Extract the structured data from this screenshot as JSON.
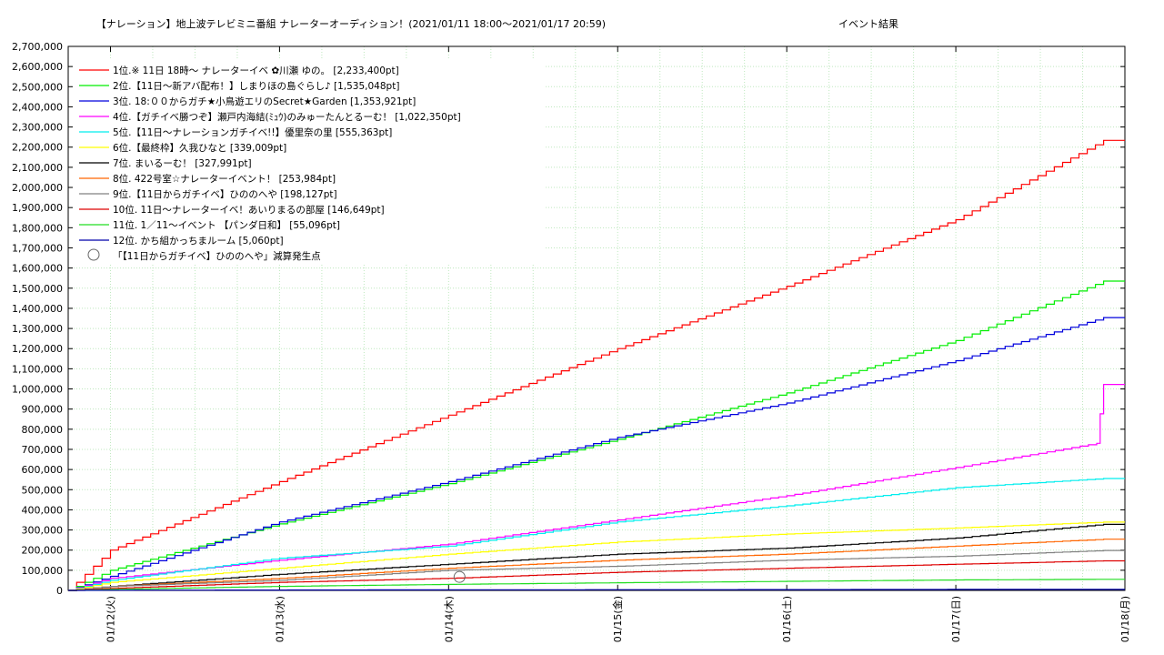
{
  "chart_data": {
    "type": "line",
    "title": "【ナレーション】地上波テレビミニ番組 ナレーターオーディション！(2021/01/11 18:00〜2021/01/17 20:59)",
    "subtitle": "イベント結果",
    "xlabel": "",
    "ylabel": "",
    "x_range": [
      "2021-01-11 18:00",
      "2021-01-18 00:00"
    ],
    "ylim": [
      0,
      2700000
    ],
    "y_ticks": [
      "0",
      "100,000",
      "200,000",
      "300,000",
      "400,000",
      "500,000",
      "600,000",
      "700,000",
      "800,000",
      "900,000",
      "1,000,000",
      "1,100,000",
      "1,200,000",
      "1,300,000",
      "1,400,000",
      "1,500,000",
      "1,600,000",
      "1,700,000",
      "1,800,000",
      "1,900,000",
      "2,000,000",
      "2,100,000",
      "2,200,000",
      "2,300,000",
      "2,400,000",
      "2,500,000",
      "2,600,000",
      "2,700,000"
    ],
    "x_ticks": [
      {
        "date": "2021-01-12",
        "label": "01/12(火)"
      },
      {
        "date": "2021-01-13",
        "label": "01/13(水)"
      },
      {
        "date": "2021-01-14",
        "label": "01/14(木)"
      },
      {
        "date": "2021-01-15",
        "label": "01/15(金)"
      },
      {
        "date": "2021-01-16",
        "label": "01/16(土)"
      },
      {
        "date": "2021-01-17",
        "label": "01/17(日)"
      },
      {
        "date": "2021-01-18",
        "label": "01/18(月)"
      }
    ],
    "grid": true,
    "legend_position": "top-left",
    "series": [
      {
        "name": "1位.※ 11日 18時〜 ナレーターイベ ✿川瀬 ゆの。 [2,233,400pt]",
        "color": "#ff0000",
        "points": [
          [
            "2021-01-11 18:00",
            0
          ],
          [
            "2021-01-12 00:00",
            200000
          ],
          [
            "2021-01-13 00:00",
            540000
          ],
          [
            "2021-01-14 00:00",
            870000
          ],
          [
            "2021-01-15 00:00",
            1200000
          ],
          [
            "2021-01-16 00:00",
            1510000
          ],
          [
            "2021-01-17 00:00",
            1840000
          ],
          [
            "2021-01-17 20:59",
            2233400
          ]
        ]
      },
      {
        "name": "2位.【11日〜新アバ配布！】しまりほの島ぐらし♪ [1,535,048pt]",
        "color": "#00ee00",
        "points": [
          [
            "2021-01-11 18:00",
            0
          ],
          [
            "2021-01-12 00:00",
            100000
          ],
          [
            "2021-01-13 00:00",
            330000
          ],
          [
            "2021-01-14 00:00",
            530000
          ],
          [
            "2021-01-15 00:00",
            750000
          ],
          [
            "2021-01-16 00:00",
            980000
          ],
          [
            "2021-01-17 00:00",
            1240000
          ],
          [
            "2021-01-17 20:59",
            1535048
          ]
        ]
      },
      {
        "name": "3位. 18:００からガチ★小鳥遊エリのSecret★Garden [1,353,921pt]",
        "color": "#0000dd",
        "points": [
          [
            "2021-01-11 18:00",
            0
          ],
          [
            "2021-01-12 00:00",
            70000
          ],
          [
            "2021-01-13 00:00",
            340000
          ],
          [
            "2021-01-14 00:00",
            540000
          ],
          [
            "2021-01-15 00:00",
            760000
          ],
          [
            "2021-01-16 00:00",
            930000
          ],
          [
            "2021-01-17 00:00",
            1140000
          ],
          [
            "2021-01-17 20:59",
            1353921
          ]
        ]
      },
      {
        "name": "4位.【ガチイベ勝つぞ】瀬戸内海結(ﾐｭｳ)のみゅーたんとるーむ！ [1,022,350pt]",
        "color": "#ff00ff",
        "points": [
          [
            "2021-01-11 18:00",
            0
          ],
          [
            "2021-01-12 00:00",
            60000
          ],
          [
            "2021-01-13 00:00",
            150000
          ],
          [
            "2021-01-14 00:00",
            230000
          ],
          [
            "2021-01-15 00:00",
            350000
          ],
          [
            "2021-01-16 00:00",
            470000
          ],
          [
            "2021-01-17 00:00",
            610000
          ],
          [
            "2021-01-17 20:00",
            730000
          ],
          [
            "2021-01-17 20:59",
            1022350
          ]
        ]
      },
      {
        "name": "5位.【11日〜ナレーションガチイベ!!】優里奈の里 [555,363pt]",
        "color": "#00eeee",
        "points": [
          [
            "2021-01-11 18:00",
            0
          ],
          [
            "2021-01-12 00:00",
            50000
          ],
          [
            "2021-01-13 00:00",
            160000
          ],
          [
            "2021-01-14 00:00",
            220000
          ],
          [
            "2021-01-15 00:00",
            340000
          ],
          [
            "2021-01-16 00:00",
            420000
          ],
          [
            "2021-01-17 00:00",
            510000
          ],
          [
            "2021-01-17 20:59",
            555363
          ]
        ]
      },
      {
        "name": "6位.【最終枠】久我ひなと [339,009pt]",
        "color": "#ffff00",
        "points": [
          [
            "2021-01-11 18:00",
            0
          ],
          [
            "2021-01-12 00:00",
            40000
          ],
          [
            "2021-01-13 00:00",
            110000
          ],
          [
            "2021-01-14 00:00",
            180000
          ],
          [
            "2021-01-15 00:00",
            240000
          ],
          [
            "2021-01-16 00:00",
            280000
          ],
          [
            "2021-01-17 00:00",
            310000
          ],
          [
            "2021-01-17 20:59",
            339009
          ]
        ]
      },
      {
        "name": "7位. まいるーむ！ [327,991pt]",
        "color": "#000000",
        "points": [
          [
            "2021-01-11 18:00",
            0
          ],
          [
            "2021-01-12 00:00",
            20000
          ],
          [
            "2021-01-13 00:00",
            80000
          ],
          [
            "2021-01-14 00:00",
            130000
          ],
          [
            "2021-01-15 00:00",
            180000
          ],
          [
            "2021-01-16 00:00",
            210000
          ],
          [
            "2021-01-17 00:00",
            260000
          ],
          [
            "2021-01-17 20:59",
            327991
          ]
        ]
      },
      {
        "name": "8位. 422号室☆ナレーターイベント！ [253,984pt]",
        "color": "#ff6600",
        "points": [
          [
            "2021-01-11 18:00",
            0
          ],
          [
            "2021-01-12 00:00",
            20000
          ],
          [
            "2021-01-13 00:00",
            60000
          ],
          [
            "2021-01-14 00:00",
            110000
          ],
          [
            "2021-01-15 00:00",
            150000
          ],
          [
            "2021-01-16 00:00",
            180000
          ],
          [
            "2021-01-17 00:00",
            220000
          ],
          [
            "2021-01-17 20:59",
            253984
          ]
        ]
      },
      {
        "name": "9位.【11日からガチイベ】ひののへや [198,127pt]",
        "color": "#808080",
        "points": [
          [
            "2021-01-11 18:00",
            0
          ],
          [
            "2021-01-12 00:00",
            20000
          ],
          [
            "2021-01-13 00:00",
            50000
          ],
          [
            "2021-01-14 00:00",
            100000
          ],
          [
            "2021-01-15 00:00",
            120000
          ],
          [
            "2021-01-16 00:00",
            150000
          ],
          [
            "2021-01-17 00:00",
            170000
          ],
          [
            "2021-01-17 20:59",
            198127
          ]
        ]
      },
      {
        "name": "10位. 11日〜ナレーターイベ！あいりまるの部屋 [146,649pt]",
        "color": "#dd0000",
        "points": [
          [
            "2021-01-11 18:00",
            0
          ],
          [
            "2021-01-12 00:00",
            10000
          ],
          [
            "2021-01-13 00:00",
            40000
          ],
          [
            "2021-01-14 00:00",
            60000
          ],
          [
            "2021-01-15 00:00",
            90000
          ],
          [
            "2021-01-16 00:00",
            110000
          ],
          [
            "2021-01-17 00:00",
            130000
          ],
          [
            "2021-01-17 20:59",
            146649
          ]
        ]
      },
      {
        "name": "11位. 1／11〜イベント 【パンダ日和】 [55,096pt]",
        "color": "#22dd22",
        "points": [
          [
            "2021-01-11 18:00",
            0
          ],
          [
            "2021-01-12 00:00",
            5000
          ],
          [
            "2021-01-13 00:00",
            20000
          ],
          [
            "2021-01-14 00:00",
            30000
          ],
          [
            "2021-01-15 00:00",
            38000
          ],
          [
            "2021-01-16 00:00",
            45000
          ],
          [
            "2021-01-17 00:00",
            52000
          ],
          [
            "2021-01-17 20:59",
            55096
          ]
        ]
      },
      {
        "name": "12位. かち組かっちまルーム [5,060pt]",
        "color": "#0000aa",
        "points": [
          [
            "2021-01-11 18:00",
            0
          ],
          [
            "2021-01-12 00:00",
            1000
          ],
          [
            "2021-01-13 00:00",
            2000
          ],
          [
            "2021-01-14 00:00",
            3000
          ],
          [
            "2021-01-15 00:00",
            3500
          ],
          [
            "2021-01-16 00:00",
            4000
          ],
          [
            "2021-01-17 00:00",
            4800
          ],
          [
            "2021-01-17 20:59",
            5060
          ]
        ]
      }
    ],
    "annotation": {
      "label": "「【11日からガチイベ】ひののへや」減算発生点",
      "at": [
        "2021-01-14 00:00",
        85000
      ]
    }
  }
}
